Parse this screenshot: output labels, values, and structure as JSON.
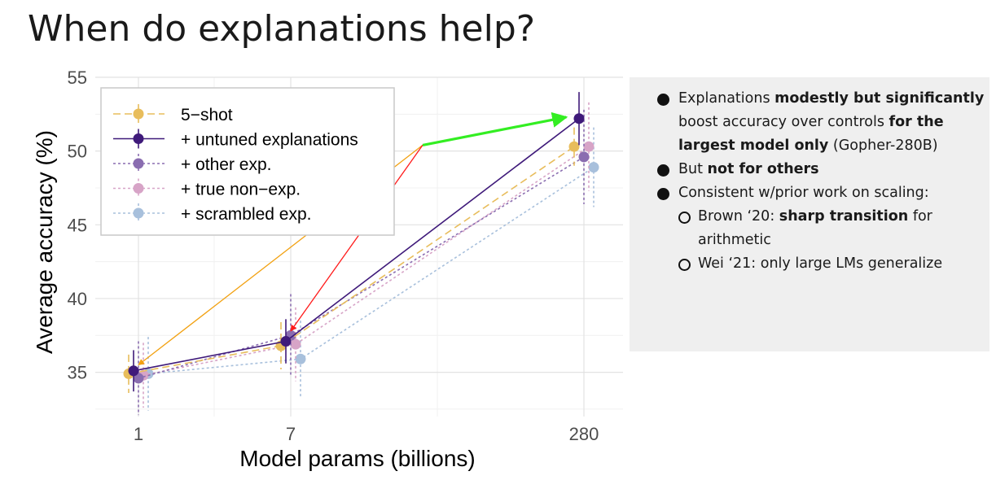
{
  "slide": {
    "title": "When do explanations help?"
  },
  "chart_data": {
    "type": "line",
    "title": "",
    "xlabel": "Model params (billions)",
    "ylabel": "Average accuracy (%)",
    "categories": [
      "1",
      "7",
      "280"
    ],
    "ylim": [
      32,
      55
    ],
    "yticks": [
      35,
      40,
      45,
      50,
      55
    ],
    "grid": true,
    "legend_position": "top-left",
    "series": [
      {
        "name": "5−shot",
        "color": "#e8bd5c",
        "dash": "9,5",
        "offset": -0.5,
        "values": [
          34.9,
          36.8,
          50.3
        ],
        "err": [
          1.3,
          1.6,
          1.3
        ]
      },
      {
        "name": "+ untuned explanations",
        "color": "#3f1a7a",
        "dash": "",
        "offset": -0.25,
        "values": [
          35.1,
          37.1,
          52.2
        ],
        "err": [
          1.4,
          1.5,
          1.8
        ]
      },
      {
        "name": "+ other exp.",
        "color": "#8a6db0",
        "dash": "3,3",
        "offset": 0.0,
        "values": [
          34.6,
          37.5,
          49.6
        ],
        "err": [
          2.5,
          2.8,
          3.2
        ]
      },
      {
        "name": "+ true non−exp.",
        "color": "#d7a4c7",
        "dash": "3,3",
        "offset": 0.25,
        "values": [
          34.8,
          36.9,
          50.3
        ],
        "err": [
          2.2,
          2.5,
          3.0
        ]
      },
      {
        "name": "+ scrambled exp.",
        "color": "#a8c0dc",
        "dash": "3,3",
        "offset": 0.5,
        "values": [
          34.9,
          35.9,
          48.9
        ],
        "err": [
          2.5,
          2.6,
          2.7
        ]
      }
    ],
    "annotations": [
      {
        "color": "#f2a111",
        "from": [
          1.45,
          50.4
        ],
        "to": [
          0,
          35.5
        ]
      },
      {
        "color": "#ff1a1a",
        "from": [
          1.45,
          50.4
        ],
        "to": [
          1.0,
          37.8
        ]
      },
      {
        "color": "#33ee22",
        "from": [
          1.45,
          50.4
        ],
        "to": [
          1.94,
          52.3
        ]
      }
    ]
  },
  "notes": {
    "b1_pre": "Explanations ",
    "b1_bold1": "modestly but significantly",
    "b1_mid": " boost accuracy over controls ",
    "b1_bold2": "for the largest model only",
    "b1_post": " (Gopher-280B)",
    "b2_pre": "But ",
    "b2_bold": "not for others",
    "b3": "Consistent w/prior work on scaling:",
    "s1_pre": "Brown ‘20: ",
    "s1_bold": "sharp transition",
    "s1_post": " for arithmetic",
    "s2": "Wei ‘21: only large LMs generalize"
  }
}
